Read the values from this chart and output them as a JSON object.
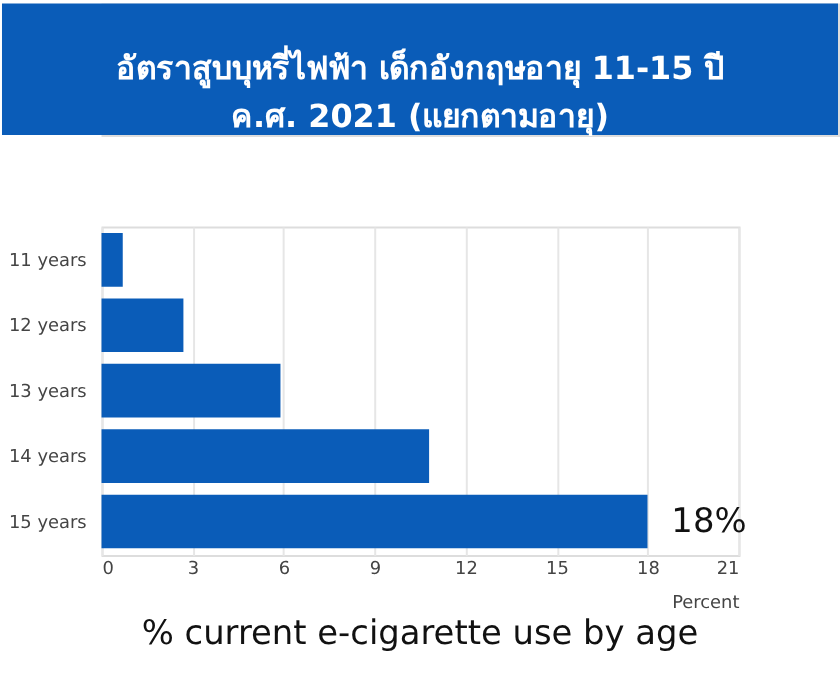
{
  "chart_data": {
    "type": "bar",
    "orientation": "horizontal",
    "title": "อัตราสูบบุหรี่ไฟฟ้า เด็กอังกฤษอายุ 11-15 ปี\nค.ศ. 2021 (แยกตามอายุ)",
    "categories": [
      "11 years",
      "12 years",
      "13 years",
      "14 years",
      "15 years"
    ],
    "values": [
      0.7,
      2.7,
      5.9,
      10.8,
      18
    ],
    "value_labels": [
      null,
      null,
      null,
      null,
      "18%"
    ],
    "color": "#0a5cb8",
    "xlabel": "Percent",
    "annotations": [
      "% current e-cigarette use by age"
    ],
    "xlim": [
      0,
      21
    ],
    "xticks": [
      0,
      3,
      6,
      9,
      12,
      15,
      18,
      21
    ],
    "grid": "x"
  }
}
